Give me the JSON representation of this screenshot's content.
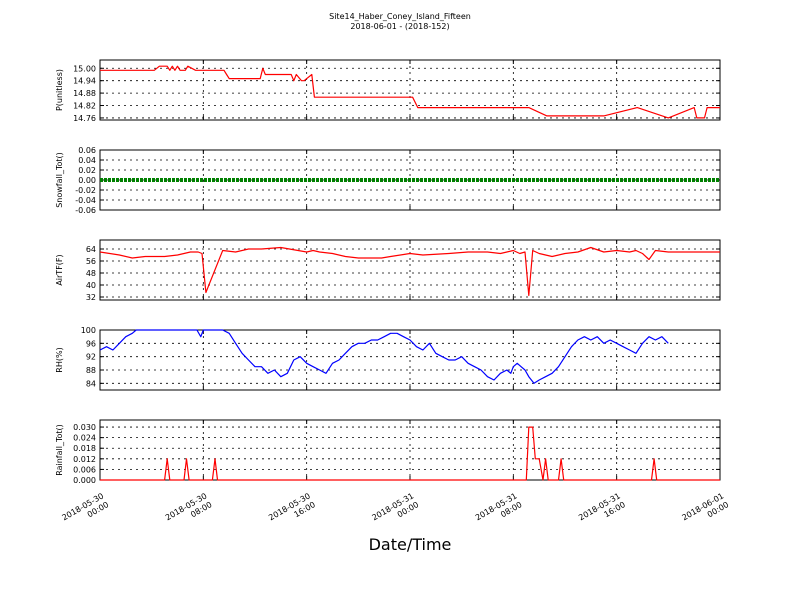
{
  "title": {
    "line1": "Site14_Haber_Coney_Island_Fifteen",
    "line2": "2018-06-01 - (2018-152)"
  },
  "x_axis": {
    "label": "Date/Time",
    "ticks": [
      {
        "line1": "2018-05-30",
        "line2": "00:00"
      },
      {
        "line1": "2018-05-30",
        "line2": "08:00"
      },
      {
        "line1": "2018-05-30",
        "line2": "16:00"
      },
      {
        "line1": "2018-05-31",
        "line2": "00:00"
      },
      {
        "line1": "2018-05-31",
        "line2": "08:00"
      },
      {
        "line1": "2018-05-31",
        "line2": "16:00"
      },
      {
        "line1": "2018-06-01",
        "line2": "00:00"
      }
    ],
    "range": [
      "2018-05-30 00:00",
      "2018-06-01 00:00"
    ]
  },
  "chart_data": [
    {
      "type": "line",
      "ylabel": "P(unitless)",
      "ylim": [
        14.75,
        15.04
      ],
      "yticks": [
        "15.00",
        "14.94",
        "14.88",
        "14.82",
        "14.76"
      ],
      "grid": true,
      "series": [
        {
          "color": "#ff0000",
          "x": [
            0.0,
            4.2,
            4.6,
            5.2,
            5.4,
            5.6,
            5.8,
            6.0,
            6.2,
            6.6,
            6.8,
            7.4,
            9.6,
            9.8,
            10.0,
            12.4,
            12.6,
            12.8,
            13.4,
            14.8,
            15.0,
            15.2,
            15.6,
            15.8,
            16.4,
            16.6,
            17.4,
            17.6,
            24.2,
            24.6,
            33.2,
            34.6,
            35.2,
            35.4,
            35.6,
            39.0,
            41.6,
            44.0,
            46.0,
            46.2,
            46.8,
            47.0,
            47.4,
            48.0
          ],
          "y": [
            14.99,
            14.99,
            15.01,
            15.01,
            14.99,
            15.01,
            14.99,
            15.01,
            14.99,
            14.99,
            15.01,
            14.99,
            14.99,
            14.97,
            14.95,
            14.95,
            15.0,
            14.97,
            14.97,
            14.97,
            14.94,
            14.97,
            14.94,
            14.94,
            14.97,
            14.86,
            14.86,
            14.86,
            14.86,
            14.81,
            14.81,
            14.77,
            14.77,
            14.77,
            14.77,
            14.77,
            14.81,
            14.76,
            14.81,
            14.76,
            14.76,
            14.81,
            14.81,
            14.81
          ]
        }
      ]
    },
    {
      "type": "line",
      "ylabel": "Snowfall_Tot()",
      "ylim": [
        -0.06,
        0.06
      ],
      "yticks": [
        "0.06",
        "0.04",
        "0.02",
        "0.00",
        "-0.02",
        "-0.04",
        "-0.06"
      ],
      "grid": true,
      "series": [
        {
          "color": "#008000",
          "x": [
            0,
            48
          ],
          "y": [
            0.0,
            0.0
          ]
        }
      ]
    },
    {
      "type": "line",
      "ylabel": "AirTF(F)",
      "ylim": [
        30,
        70
      ],
      "yticks": [
        "64",
        "56",
        "48",
        "40",
        "32"
      ],
      "grid": true,
      "series": [
        {
          "color": "#ff0000",
          "x": [
            0,
            1.5,
            2.5,
            3.5,
            5.0,
            6.0,
            6.5,
            7.0,
            7.6,
            7.9,
            8.2,
            9.5,
            10.5,
            11.5,
            12.5,
            14.0,
            16.0,
            16.5,
            17.0,
            18.0,
            19.0,
            20.0,
            21.0,
            21.8,
            22.5,
            24.0,
            25.0,
            27.0,
            28.5,
            30.0,
            31.0,
            31.5,
            32.0,
            32.5,
            32.9,
            33.2,
            33.5,
            34.0,
            34.5,
            35.0,
            36.0,
            37.0,
            38.0,
            39.0,
            40.0,
            41.0,
            41.5,
            42.0,
            42.5,
            43.0,
            44.0,
            45.0,
            46.0,
            47.0,
            48.0
          ],
          "y": [
            62,
            60,
            58,
            59,
            59,
            60,
            61,
            62,
            62,
            61,
            35,
            63,
            62,
            64,
            64,
            65,
            62,
            63,
            62,
            61,
            59,
            58,
            58,
            58,
            59,
            61,
            60,
            61,
            62,
            62,
            61,
            62,
            63,
            61,
            62,
            33,
            63,
            61,
            60,
            59,
            61,
            62,
            65,
            62,
            63,
            62,
            63,
            61,
            57,
            63,
            62,
            62,
            62,
            62,
            62
          ]
        }
      ]
    },
    {
      "type": "line",
      "ylabel": "RH(%)",
      "ylim": [
        82,
        100
      ],
      "yticks": [
        "100",
        "96",
        "92",
        "88",
        "84"
      ],
      "grid": true,
      "series": [
        {
          "color": "#0000ff",
          "x": [
            0,
            0.5,
            1.0,
            1.5,
            2.0,
            2.5,
            2.8,
            3.0,
            3.5,
            7.5,
            7.8,
            8.0,
            9.5,
            10.0,
            10.5,
            11.0,
            11.5,
            12.0,
            12.5,
            13.0,
            13.5,
            14.0,
            14.5,
            15.0,
            15.5,
            16.0,
            16.5,
            17.0,
            17.5,
            18.0,
            18.5,
            19.0,
            19.5,
            20.0,
            20.5,
            21.0,
            21.5,
            22.0,
            22.5,
            23.0,
            23.5,
            24.0,
            24.5,
            25.0,
            25.5,
            26.0,
            26.5,
            27.0,
            27.5,
            28.0,
            28.5,
            29.0,
            29.5,
            30.0,
            30.5,
            31.0,
            31.5,
            31.8,
            32.0,
            32.3,
            32.6,
            32.9,
            33.2,
            33.6,
            34.0,
            34.5,
            35.0,
            35.5,
            36.0,
            36.5,
            37.0,
            37.5,
            38.0,
            38.5,
            39.0,
            39.5,
            40.0,
            40.5,
            41.0,
            41.5,
            42.0,
            42.5,
            43.0,
            43.5,
            44.0
          ],
          "y": [
            94,
            95,
            94,
            96,
            98,
            99,
            100,
            100,
            100,
            100,
            98,
            100,
            100,
            99,
            96,
            93,
            91,
            89,
            89,
            87,
            88,
            86,
            87,
            91,
            92,
            90,
            89,
            88,
            87,
            90,
            91,
            93,
            95,
            96,
            96,
            97,
            97,
            98,
            99,
            99,
            98,
            97,
            95,
            94,
            96,
            93,
            92,
            91,
            91,
            92,
            90,
            89,
            88,
            86,
            85,
            87,
            88,
            87,
            89,
            90,
            89,
            88,
            86,
            84,
            85,
            86,
            87,
            89,
            92,
            95,
            97,
            98,
            97,
            98,
            96,
            97,
            96,
            95,
            94,
            93,
            96,
            98,
            97,
            98,
            96
          ]
        }
      ]
    },
    {
      "type": "line",
      "ylabel": "Rainfall_Tot()",
      "ylim": [
        0,
        0.034
      ],
      "yticks": [
        "0.030",
        "0.024",
        "0.018",
        "0.012",
        "0.006",
        "0.000"
      ],
      "grid": true,
      "series": [
        {
          "color": "#ff0000",
          "x": [
            0,
            5.0,
            5.2,
            5.4,
            6.5,
            6.7,
            6.9,
            8.7,
            8.9,
            9.1,
            33.0,
            33.2,
            33.5,
            33.7,
            34.0,
            34.3,
            34.5,
            34.7,
            35.5,
            35.7,
            35.9,
            42.7,
            42.9,
            43.1,
            48.0
          ],
          "y": [
            0,
            0,
            0.012,
            0,
            0,
            0.012,
            0,
            0,
            0.012,
            0,
            0,
            0.03,
            0.03,
            0.012,
            0.012,
            0,
            0.012,
            0,
            0,
            0.012,
            0,
            0,
            0.012,
            0,
            0
          ]
        }
      ]
    }
  ]
}
